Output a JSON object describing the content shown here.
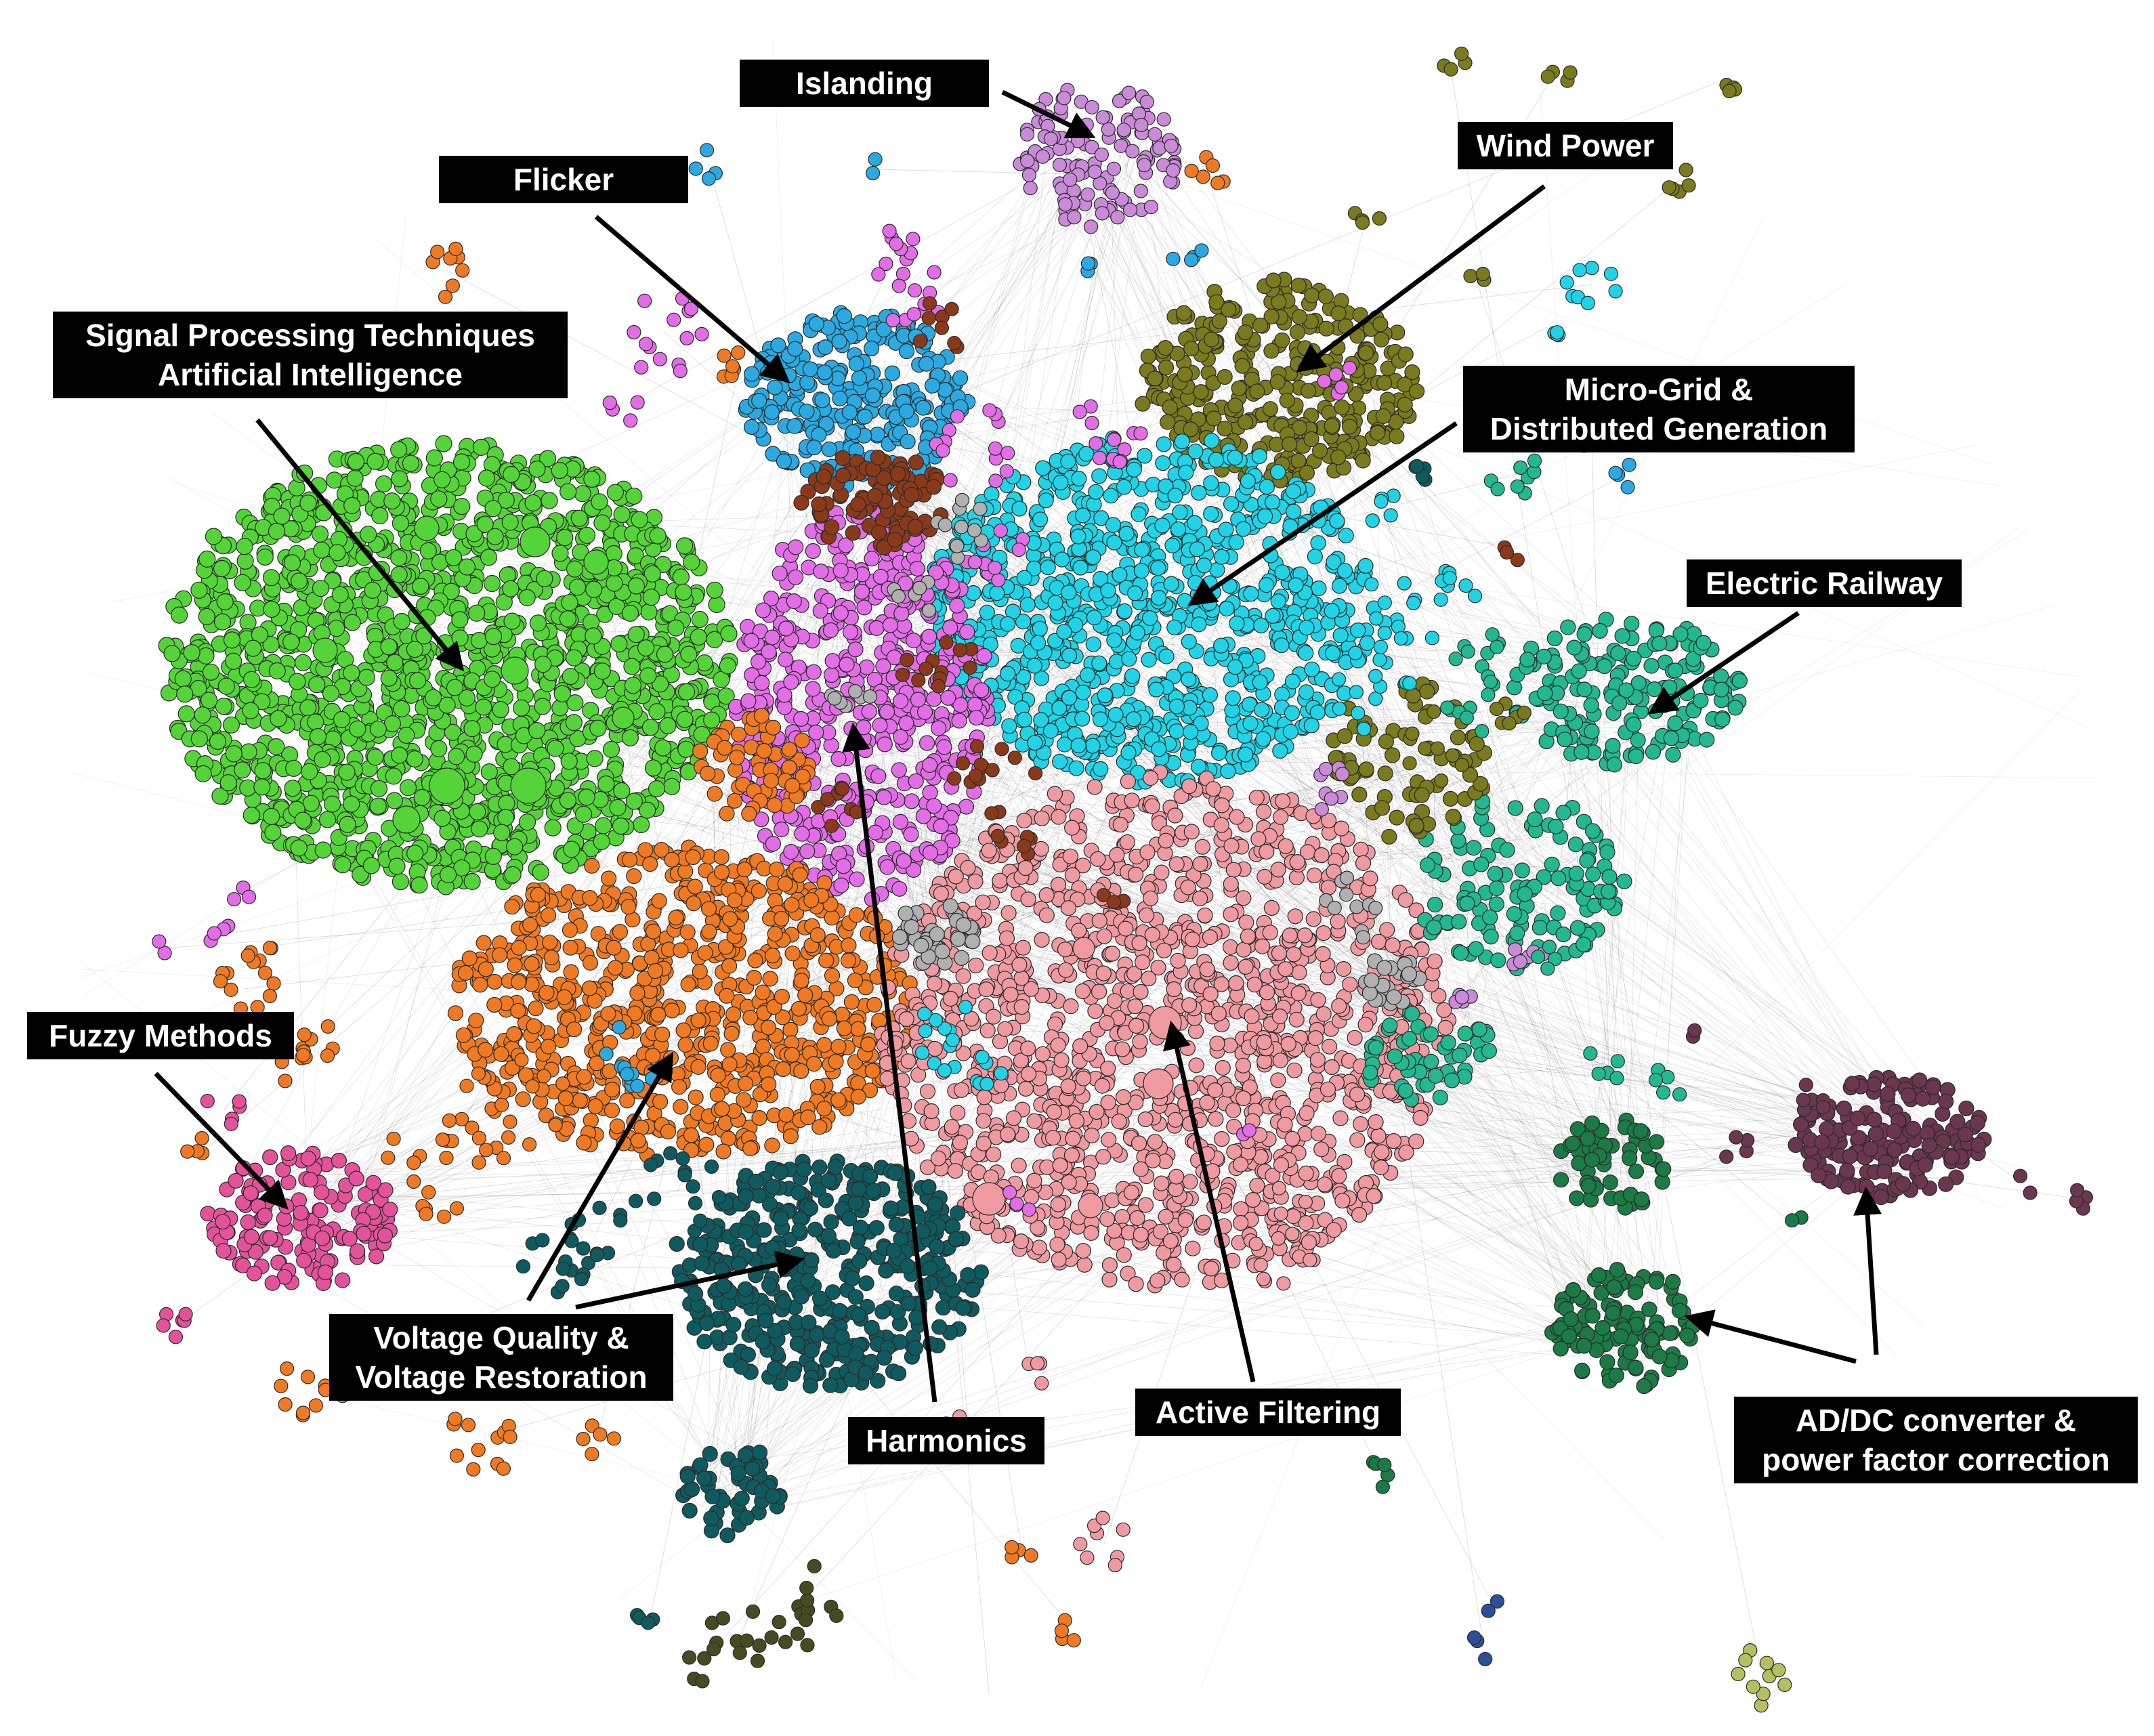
{
  "clusters": [
    {
      "key": "signal",
      "lines": [
        "Signal Processing Techniques",
        "Artificial Intelligence"
      ],
      "color": "#55d43a"
    },
    {
      "key": "flicker",
      "lines": [
        "Flicker"
      ],
      "color": "#2ba9e0"
    },
    {
      "key": "islanding",
      "lines": [
        "Islanding"
      ],
      "color": "#c98ad8"
    },
    {
      "key": "wind",
      "lines": [
        "Wind Power"
      ],
      "color": "#7a7a1e"
    },
    {
      "key": "microgrid",
      "lines": [
        "Micro-Grid &",
        "Distributed Generation"
      ],
      "color": "#22d3e6"
    },
    {
      "key": "railway",
      "lines": [
        "Electric Railway"
      ],
      "color": "#23b88f"
    },
    {
      "key": "fuzzy",
      "lines": [
        "Fuzzy Methods"
      ],
      "color": "#e4529a"
    },
    {
      "key": "voltage",
      "lines": [
        "Voltage Quality &",
        "Voltage Restoration"
      ],
      "color": "#f07a23"
    },
    {
      "key": "harmonics",
      "lines": [
        "Harmonics"
      ],
      "color": "#e26de6"
    },
    {
      "key": "active",
      "lines": [
        "Active Filtering"
      ],
      "color": "#ef9aa0"
    },
    {
      "key": "acdc",
      "lines": [
        "AD/DC converter &",
        "power factor correction"
      ],
      "color": "#6b3650"
    }
  ],
  "other_colors": {
    "dark_teal": "#0f5a5e",
    "brown": "#8a3a1a",
    "gray": "#b0b0b0",
    "dark_green": "#1b7a45",
    "olive_dark": "#4a4a22",
    "navy": "#2d4f9a",
    "khaki": "#b5bf60",
    "edge": "#555555"
  }
}
